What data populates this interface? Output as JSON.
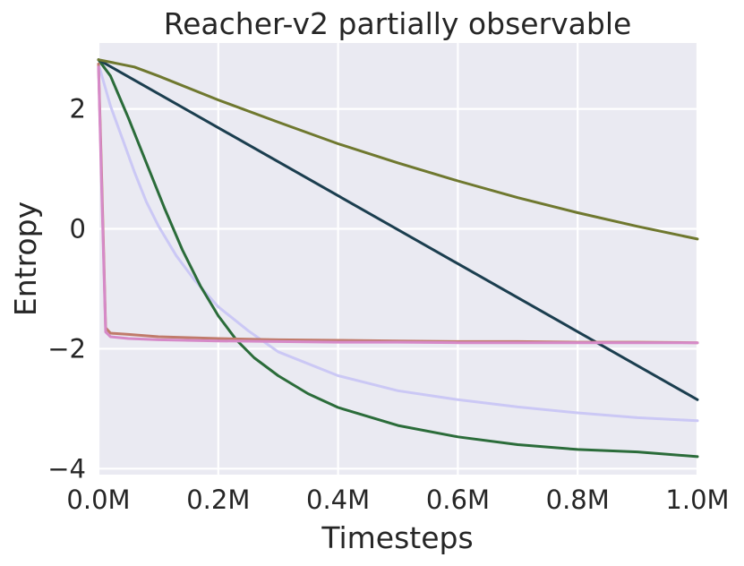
{
  "chart_data": {
    "type": "line",
    "title": "Reacher-v2 partially observable",
    "xlabel": "Timesteps",
    "ylabel": "Entropy",
    "xlim": [
      0,
      1000000
    ],
    "ylim": [
      -4.1,
      3.1
    ],
    "x_ticks": [
      {
        "value": 0,
        "label": "0.0M"
      },
      {
        "value": 200000,
        "label": "0.2M"
      },
      {
        "value": 400000,
        "label": "0.4M"
      },
      {
        "value": 600000,
        "label": "0.6M"
      },
      {
        "value": 800000,
        "label": "0.8M"
      },
      {
        "value": 1000000,
        "label": "1.0M"
      }
    ],
    "y_ticks": [
      {
        "value": -4,
        "label": "−4"
      },
      {
        "value": -2,
        "label": "−2"
      },
      {
        "value": 0,
        "label": "0"
      },
      {
        "value": 2,
        "label": "2"
      }
    ],
    "grid": true,
    "background": "#eaeaf2",
    "series": [
      {
        "color": "#cbc8f5",
        "points": [
          [
            0,
            2.75
          ],
          [
            10000,
            2.4
          ],
          [
            20000,
            2.05
          ],
          [
            40000,
            1.5
          ],
          [
            60000,
            0.95
          ],
          [
            80000,
            0.45
          ],
          [
            100000,
            0.05
          ],
          [
            130000,
            -0.45
          ],
          [
            160000,
            -0.85
          ],
          [
            200000,
            -1.3
          ],
          [
            250000,
            -1.7
          ],
          [
            300000,
            -2.05
          ],
          [
            400000,
            -2.45
          ],
          [
            500000,
            -2.7
          ],
          [
            600000,
            -2.85
          ],
          [
            700000,
            -2.97
          ],
          [
            800000,
            -3.07
          ],
          [
            900000,
            -3.15
          ],
          [
            1000000,
            -3.2
          ]
        ]
      },
      {
        "color": "#2b6c3a",
        "points": [
          [
            0,
            2.82
          ],
          [
            20000,
            2.55
          ],
          [
            50000,
            1.85
          ],
          [
            80000,
            1.1
          ],
          [
            110000,
            0.35
          ],
          [
            140000,
            -0.35
          ],
          [
            170000,
            -0.95
          ],
          [
            200000,
            -1.45
          ],
          [
            230000,
            -1.85
          ],
          [
            260000,
            -2.15
          ],
          [
            300000,
            -2.45
          ],
          [
            350000,
            -2.75
          ],
          [
            400000,
            -2.98
          ],
          [
            500000,
            -3.28
          ],
          [
            600000,
            -3.47
          ],
          [
            700000,
            -3.6
          ],
          [
            800000,
            -3.68
          ],
          [
            900000,
            -3.72
          ],
          [
            1000000,
            -3.8
          ]
        ]
      },
      {
        "color": "#1b3e4f",
        "points": [
          [
            0,
            2.82
          ],
          [
            1000000,
            -2.85
          ]
        ]
      },
      {
        "color": "#6f782f",
        "points": [
          [
            0,
            2.82
          ],
          [
            60000,
            2.7
          ],
          [
            100000,
            2.55
          ],
          [
            200000,
            2.15
          ],
          [
            300000,
            1.78
          ],
          [
            400000,
            1.42
          ],
          [
            500000,
            1.1
          ],
          [
            600000,
            0.8
          ],
          [
            700000,
            0.52
          ],
          [
            800000,
            0.27
          ],
          [
            900000,
            0.04
          ],
          [
            1000000,
            -0.17
          ]
        ]
      },
      {
        "color": "#c07b6b",
        "points": [
          [
            0,
            2.75
          ],
          [
            5000,
            1.0
          ],
          [
            12000,
            -1.65
          ],
          [
            20000,
            -1.74
          ],
          [
            50000,
            -1.76
          ],
          [
            100000,
            -1.8
          ],
          [
            200000,
            -1.83
          ],
          [
            300000,
            -1.85
          ],
          [
            400000,
            -1.86
          ],
          [
            500000,
            -1.87
          ],
          [
            600000,
            -1.88
          ],
          [
            700000,
            -1.88
          ],
          [
            800000,
            -1.89
          ],
          [
            900000,
            -1.89
          ],
          [
            1000000,
            -1.9
          ]
        ]
      },
      {
        "color": "#d68ac8",
        "points": [
          [
            0,
            2.7
          ],
          [
            5000,
            0.8
          ],
          [
            12000,
            -1.72
          ],
          [
            20000,
            -1.8
          ],
          [
            50000,
            -1.83
          ],
          [
            100000,
            -1.85
          ],
          [
            200000,
            -1.87
          ],
          [
            300000,
            -1.88
          ],
          [
            400000,
            -1.89
          ],
          [
            500000,
            -1.89
          ],
          [
            600000,
            -1.9
          ],
          [
            700000,
            -1.9
          ],
          [
            800000,
            -1.9
          ],
          [
            900000,
            -1.9
          ],
          [
            1000000,
            -1.9
          ]
        ]
      }
    ]
  }
}
